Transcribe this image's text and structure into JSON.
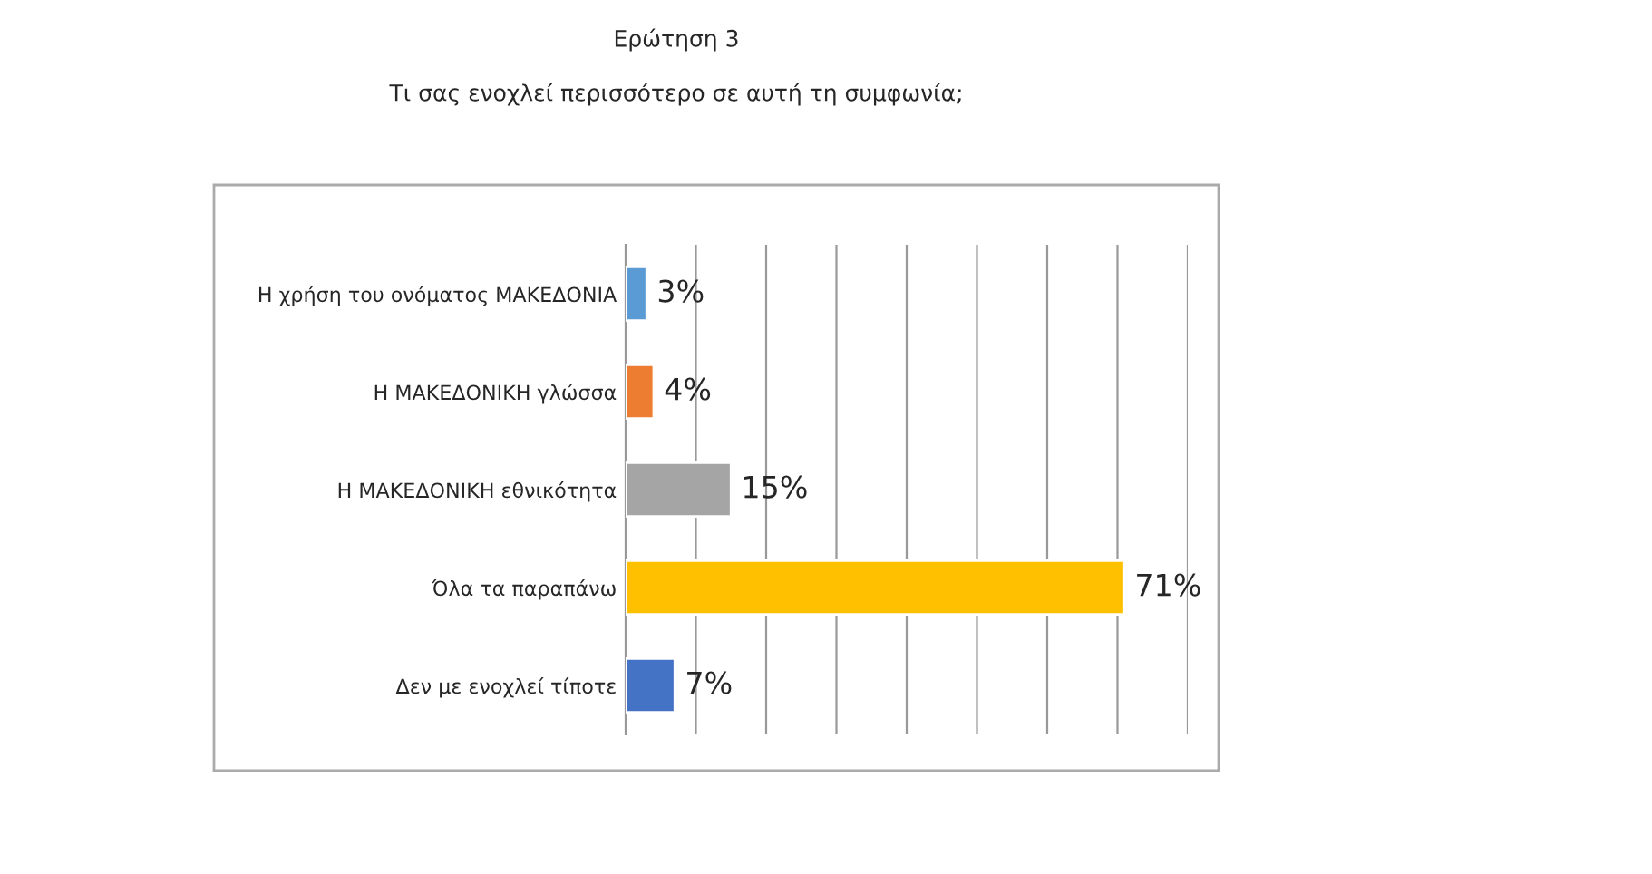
{
  "chart_data": {
    "type": "bar",
    "orientation": "horizontal",
    "title": "Ερώτηση 3",
    "subtitle": "Τι σας ενοχλεί περισσότερο σε αυτή τη συμφωνία;",
    "categories": [
      "Η χρήση του ονόματος ΜΑΚΕΔΟΝΙΑ",
      "Η ΜΑΚΕΔΟΝΙΚΗ γλώσσα",
      "Η ΜΑΚΕΔΟΝΙΚΗ εθνικότητα",
      "Όλα τα παραπάνω",
      "Δεν με ενοχλεί τίποτε"
    ],
    "values": [
      3,
      4,
      15,
      71,
      7
    ],
    "colors": [
      "#5b9bd5",
      "#ed7d31",
      "#a5a5a5",
      "#ffc000",
      "#4472c4"
    ],
    "value_labels": [
      "3%",
      "4%",
      "15%",
      "71%",
      "7%"
    ],
    "xlim": [
      0,
      80
    ],
    "xticks": [
      {
        "value": 0,
        "label": null
      },
      {
        "value": 10,
        "label": null
      },
      {
        "value": 20,
        "label": null
      },
      {
        "value": 30,
        "label": null
      },
      {
        "value": 40,
        "label": null
      },
      {
        "value": 50,
        "label": null
      },
      {
        "value": 60,
        "label": null
      },
      {
        "value": 70,
        "label": null
      },
      {
        "value": 80,
        "label": null
      }
    ],
    "grid": "x",
    "tick_labels": "y",
    "legend": false
  }
}
